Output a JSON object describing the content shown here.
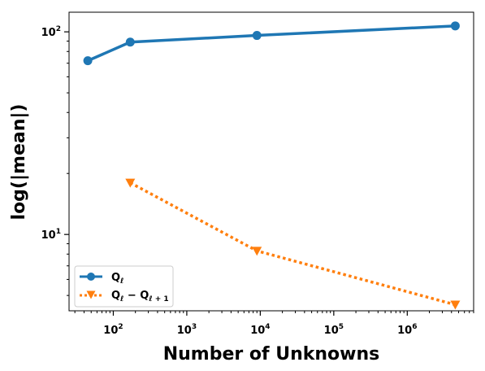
{
  "chart_data": {
    "type": "line",
    "title": "",
    "xlabel": "Number of Unknowns",
    "ylabel": "log(|mean|)",
    "xscale": "log",
    "yscale": "log",
    "xlim": [
      25,
      8000000
    ],
    "ylim": [
      4.2,
      125
    ],
    "grid": false,
    "legend_position": "lower-left",
    "x_ticks": [
      {
        "value": 100,
        "base": "10",
        "exp": "2"
      },
      {
        "value": 1000,
        "base": "10",
        "exp": "3"
      },
      {
        "value": 10000,
        "base": "10",
        "exp": "4"
      },
      {
        "value": 100000,
        "base": "10",
        "exp": "5"
      },
      {
        "value": 1000000,
        "base": "10",
        "exp": "6"
      }
    ],
    "y_ticks": [
      {
        "value": 10,
        "base": "10",
        "exp": "1"
      },
      {
        "value": 100,
        "base": "10",
        "exp": "2"
      }
    ],
    "series": [
      {
        "name_main": "Q",
        "name_sub": "ℓ",
        "color": "#1f77b4",
        "style": "solid",
        "marker": "circle",
        "x": [
          45,
          170,
          9000,
          4500000
        ],
        "y": [
          72,
          89,
          96,
          107
        ]
      },
      {
        "name_main": "Q",
        "name_sub": "ℓ",
        "name_mid": " − Q",
        "name_sub2": "ℓ + 1",
        "color": "#ff7f0e",
        "style": "dotted",
        "marker": "triangle-down",
        "x": [
          170,
          9000,
          4500000
        ],
        "y": [
          18,
          8.3,
          4.5
        ]
      }
    ]
  }
}
